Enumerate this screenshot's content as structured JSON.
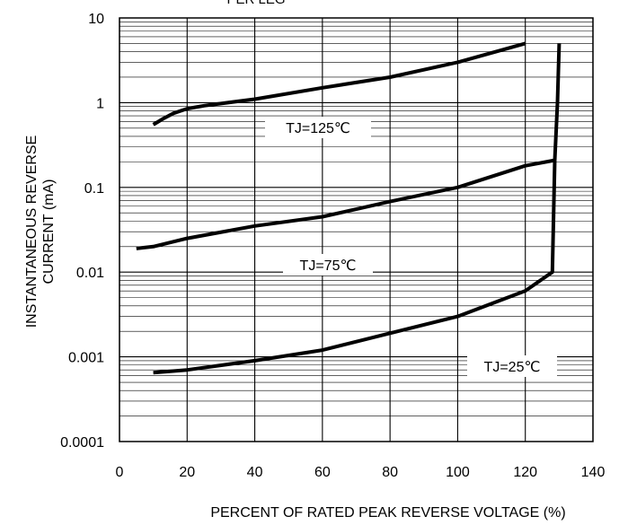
{
  "chart_data": {
    "type": "line",
    "title": "PER LEG",
    "xlabel": "PERCENT OF RATED PEAK REVERSE VOLTAGE (%)",
    "ylabel_line1": "INSTANTANEOUS REVERSE",
    "ylabel_line2": "CURRENT (mA)",
    "xlim": [
      0,
      140
    ],
    "ylim": [
      0.0001,
      10
    ],
    "yscale": "log",
    "grid": true,
    "x_ticks": [
      "0",
      "20",
      "40",
      "60",
      "80",
      "100",
      "120",
      "140"
    ],
    "y_ticks": [
      "10",
      "1",
      "0.1",
      "0.01",
      "0.001",
      "0.0001"
    ],
    "series": [
      {
        "name": "TJ=125℃",
        "x": [
          10,
          13,
          16,
          20,
          25,
          40,
          60,
          80,
          100,
          120
        ],
        "y": [
          0.55,
          0.65,
          0.75,
          0.85,
          0.92,
          1.1,
          1.5,
          2.0,
          3.0,
          5.0
        ]
      },
      {
        "name": "TJ=75℃",
        "x": [
          5,
          10,
          20,
          40,
          60,
          80,
          100,
          120,
          129
        ],
        "y": [
          0.019,
          0.02,
          0.025,
          0.035,
          0.045,
          0.068,
          0.1,
          0.18,
          0.21
        ]
      },
      {
        "name": "TJ=25℃",
        "x": [
          10,
          20,
          40,
          60,
          80,
          100,
          120,
          128,
          128.7,
          129.5,
          130
        ],
        "y": [
          0.00065,
          0.0007,
          0.0009,
          0.0012,
          0.0019,
          0.003,
          0.006,
          0.01,
          0.21,
          1.0,
          5.0
        ]
      }
    ]
  }
}
